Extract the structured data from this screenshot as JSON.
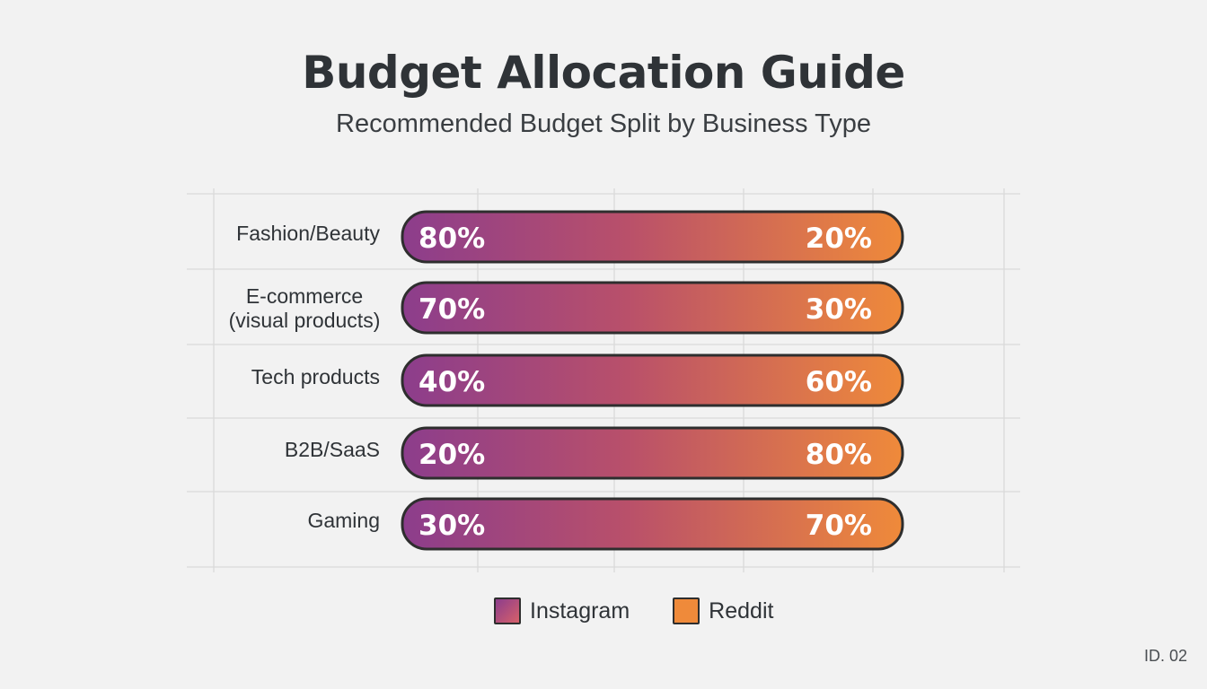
{
  "colors": {
    "instagram": "#8c3d8c",
    "reddit": "#ef8a3a",
    "outline": "#2e2e2e",
    "grid": "#dadada",
    "background": "#f2f2f2"
  },
  "chart_data": {
    "type": "bar",
    "stacked": true,
    "orientation": "horizontal",
    "title": "Budget Allocation Guide",
    "subtitle": "Recommended Budget Split by Business Type",
    "categories": [
      "Fashion/Beauty",
      [
        "E-commerce",
        "(visual products)"
      ],
      "Tech products",
      "B2B/SaaS",
      "Gaming"
    ],
    "series": [
      {
        "name": "Instagram",
        "values": [
          80,
          70,
          40,
          20,
          30
        ]
      },
      {
        "name": "Reddit",
        "values": [
          20,
          30,
          60,
          80,
          70
        ]
      }
    ],
    "value_suffix": "%",
    "grid": true,
    "legend_position": "bottom-center"
  },
  "legend": [
    {
      "label": "Instagram",
      "color_key": "instagram"
    },
    {
      "label": "Reddit",
      "color_key": "reddit"
    }
  ],
  "footer": {
    "id_label": "ID. 02"
  }
}
